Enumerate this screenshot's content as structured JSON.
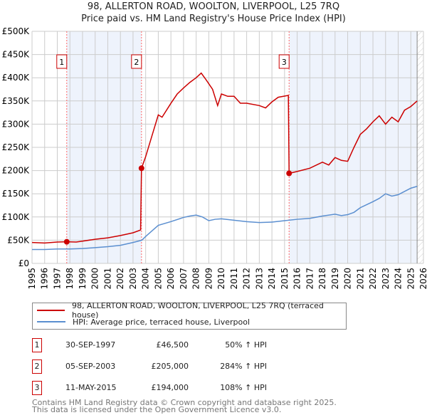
{
  "chart_data": {
    "type": "line",
    "title": "98, ALLERTON ROAD, WOOLTON, LIVERPOOL, L25 7RQ",
    "subtitle": "Price paid vs. HM Land Registry's House Price Index (HPI)",
    "xlim": [
      1995,
      2026
    ],
    "ylim": [
      0,
      500
    ],
    "x_ticks": [
      "1995",
      "1996",
      "1997",
      "1998",
      "1999",
      "2000",
      "2001",
      "2002",
      "2003",
      "2004",
      "2005",
      "2006",
      "2007",
      "2008",
      "2009",
      "2010",
      "2011",
      "2012",
      "2013",
      "2014",
      "2015",
      "2016",
      "2017",
      "2018",
      "2019",
      "2020",
      "2021",
      "2022",
      "2023",
      "2024",
      "2025",
      "2026"
    ],
    "y_ticks": [
      {
        "v": 0,
        "label": "£0"
      },
      {
        "v": 50,
        "label": "£50K"
      },
      {
        "v": 100,
        "label": "£100K"
      },
      {
        "v": 150,
        "label": "£150K"
      },
      {
        "v": 200,
        "label": "£200K"
      },
      {
        "v": 250,
        "label": "£250K"
      },
      {
        "v": 300,
        "label": "£300K"
      },
      {
        "v": 350,
        "label": "£350K"
      },
      {
        "v": 400,
        "label": "£400K"
      },
      {
        "v": 450,
        "label": "£450K"
      },
      {
        "v": 500,
        "label": "£500K"
      }
    ],
    "grid": true,
    "series": [
      {
        "name": "98, ALLERTON ROAD, WOOLTON, LIVERPOOL, L25 7RQ (terraced house)",
        "color": "#cc0000",
        "x": [
          1995,
          1996,
          1997,
          1997.75,
          1998.5,
          1999,
          2000,
          2001,
          2002,
          2003,
          2003.6,
          2003.67,
          2004,
          2004.5,
          2005,
          2005.3,
          2006,
          2006.5,
          2007,
          2007.5,
          2008,
          2008.4,
          2008.8,
          2009.3,
          2009.7,
          2010,
          2010.5,
          2011,
          2011.5,
          2012,
          2013,
          2013.5,
          2014,
          2014.5,
          2015.3,
          2015.36,
          2016,
          2017,
          2018,
          2018.5,
          2019,
          2019.5,
          2020,
          2020.5,
          2021,
          2021.5,
          2022,
          2022.5,
          2023,
          2023.5,
          2024,
          2024.5,
          2025,
          2025.5
        ],
        "y": [
          45,
          44,
          46,
          46.5,
          46,
          48,
          52,
          55,
          60,
          66,
          72,
          205,
          230,
          275,
          320,
          315,
          345,
          365,
          378,
          390,
          400,
          410,
          395,
          375,
          340,
          365,
          360,
          360,
          345,
          345,
          340,
          335,
          348,
          358,
          362,
          194,
          198,
          205,
          218,
          212,
          228,
          222,
          220,
          250,
          278,
          290,
          305,
          318,
          300,
          315,
          305,
          330,
          338,
          350
        ]
      },
      {
        "name": "HPI: Average price, terraced house, Liverpool",
        "color": "#5b8fd0",
        "x": [
          1995,
          1996,
          1997,
          1998,
          1999,
          2000,
          2001,
          2002,
          2003,
          2003.7,
          2004,
          2004.5,
          2005,
          2006,
          2007,
          2007.5,
          2008,
          2008.5,
          2009,
          2009.5,
          2010,
          2011,
          2012,
          2013,
          2014,
          2015,
          2016,
          2017,
          2018,
          2019,
          2019.5,
          2020,
          2020.5,
          2021,
          2022,
          2022.5,
          2023,
          2023.5,
          2024,
          2024.5,
          2025,
          2025.5
        ],
        "y": [
          30,
          30,
          31,
          31,
          32,
          34,
          36,
          39,
          45,
          50,
          58,
          70,
          82,
          90,
          99,
          102,
          104,
          100,
          92,
          95,
          96,
          93,
          90,
          88,
          89,
          92,
          95,
          97,
          102,
          106,
          103,
          105,
          110,
          120,
          133,
          140,
          150,
          145,
          148,
          155,
          162,
          166
        ]
      }
    ],
    "sales": [
      {
        "id": "1",
        "x": 1997.75,
        "y": 46.5,
        "date": "30-SEP-1997",
        "price": "£46,500",
        "hpi": "50% ↑ HPI"
      },
      {
        "id": "2",
        "x": 2003.67,
        "y": 205,
        "date": "05-SEP-2003",
        "price": "£205,000",
        "hpi": "284% ↑ HPI"
      },
      {
        "id": "3",
        "x": 2015.36,
        "y": 194,
        "date": "11-MAY-2015",
        "price": "£194,000",
        "hpi": "108% ↑ HPI"
      }
    ],
    "shaded": [
      [
        1997.75,
        2003.67
      ],
      [
        2015.36,
        2025.5
      ]
    ],
    "forecast_from": 2025.5,
    "legend_position": "below"
  },
  "footer": [
    "Contains HM Land Registry data © Crown copyright and database right 2025.",
    "This data is licensed under the Open Government Licence v3.0."
  ]
}
